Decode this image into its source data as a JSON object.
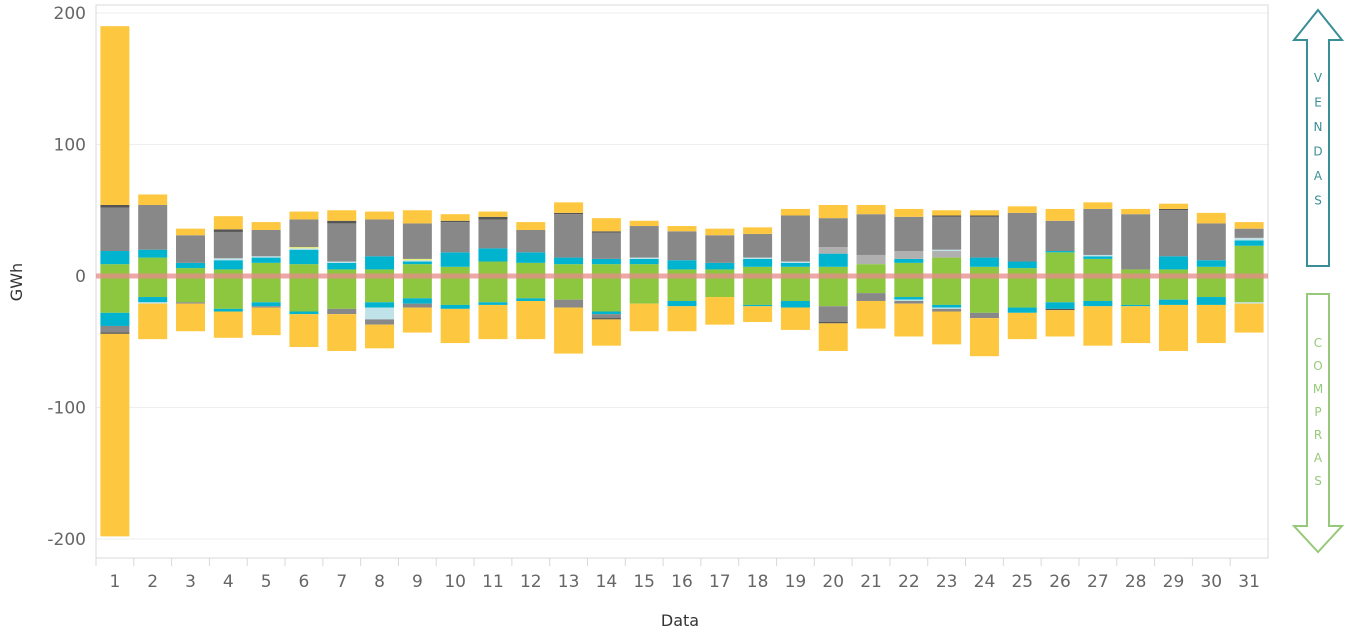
{
  "chart_data": {
    "type": "bar",
    "stacked": "diverging",
    "xlabel": "Data",
    "ylabel": "GWh",
    "ylim": [
      -210,
      210
    ],
    "yticks": [
      200,
      100,
      0,
      -100,
      -200
    ],
    "categories": [
      "1",
      "2",
      "3",
      "4",
      "5",
      "6",
      "7",
      "8",
      "9",
      "10",
      "11",
      "12",
      "13",
      "14",
      "15",
      "16",
      "17",
      "18",
      "19",
      "20",
      "21",
      "22",
      "23",
      "24",
      "25",
      "26",
      "27",
      "28",
      "29",
      "30",
      "31"
    ],
    "zero_line_color": "#e88a8a",
    "series": [
      {
        "color": "#8dc63f",
        "values": [
          9,
          14,
          6,
          5,
          10,
          9,
          5,
          5,
          9,
          7,
          11,
          10,
          9,
          9,
          9,
          5,
          5,
          7,
          7,
          7,
          9,
          10,
          14,
          7,
          6,
          18,
          13,
          5,
          5,
          7,
          23
        ]
      },
      {
        "color": "#00b4d0",
        "values": [
          10,
          6,
          4,
          7,
          4,
          11,
          5,
          10,
          2,
          11,
          10,
          8,
          5,
          4,
          4,
          7,
          5,
          6,
          3,
          10,
          0,
          3,
          0,
          7,
          5,
          1,
          2,
          0,
          10,
          5,
          4
        ]
      },
      {
        "color": "#b0b0b0",
        "values": [
          0,
          0,
          0,
          0,
          0,
          0,
          0,
          0,
          0,
          0,
          0,
          0,
          0,
          0,
          0,
          0,
          0,
          0,
          0,
          5,
          7,
          6,
          5,
          0,
          0,
          0,
          0,
          0,
          0,
          0,
          0
        ]
      },
      {
        "color": "#bfe3e8",
        "values": [
          0,
          0,
          0,
          1.5,
          1,
          1,
          1,
          0,
          1,
          0,
          0,
          0,
          0,
          0,
          1,
          0,
          0,
          1,
          1,
          0,
          0,
          0,
          1,
          0,
          0,
          0,
          1,
          0,
          0,
          0,
          2
        ]
      },
      {
        "color": "#e6f075",
        "values": [
          0,
          0,
          0,
          0,
          0,
          1,
          0,
          0,
          1,
          0,
          0,
          0,
          0,
          0,
          0,
          0,
          0,
          0,
          0,
          0,
          0,
          0,
          0,
          0,
          0,
          0,
          0,
          0,
          0,
          0,
          0
        ]
      },
      {
        "color": "#888888",
        "values": [
          33,
          34,
          21,
          20,
          20,
          21,
          29,
          28,
          27,
          23,
          22,
          17,
          33,
          20,
          24,
          22,
          21,
          18,
          35,
          22,
          31,
          26,
          25,
          31,
          37,
          23,
          35,
          42,
          35,
          28,
          7
        ]
      },
      {
        "color": "#555555",
        "values": [
          2,
          0,
          0,
          2,
          0,
          0,
          2,
          0,
          0,
          1,
          2,
          0,
          1,
          1,
          0,
          0,
          0,
          0,
          0,
          0,
          0,
          0,
          1,
          1,
          0,
          0,
          0,
          0,
          1,
          0,
          0
        ]
      },
      {
        "color": "#fdc840",
        "values": [
          136,
          8,
          5,
          10,
          6,
          6,
          8,
          6,
          10,
          5,
          4,
          6,
          8,
          10,
          4,
          4,
          5,
          5,
          5,
          10,
          7,
          6,
          4,
          4,
          5,
          9,
          5,
          4,
          4,
          8,
          5
        ]
      },
      {
        "color": "#8dc63f",
        "values": [
          -28,
          -16,
          -20,
          -25,
          -20,
          -27,
          -25,
          -20,
          -17,
          -22,
          -20,
          -17,
          -18,
          -27,
          -21,
          -19,
          -16,
          -22,
          -19,
          -23,
          -13,
          -16,
          -22,
          -28,
          -24,
          -20,
          -19,
          -22,
          -18,
          -16,
          -20
        ]
      },
      {
        "color": "#00b4d0",
        "values": [
          -10,
          -4,
          0,
          -2,
          -3,
          -2,
          0,
          -4,
          -4,
          -3,
          -2,
          -2,
          0,
          -2,
          0,
          -4,
          0,
          -1,
          -5,
          0,
          0,
          -2,
          -2,
          0,
          -4,
          -5,
          -4,
          -1,
          -4,
          -6,
          0
        ]
      },
      {
        "color": "#bfe3e8",
        "values": [
          0,
          -1,
          0,
          0,
          0,
          0,
          0,
          -9,
          0,
          0,
          0,
          0,
          0,
          0,
          0,
          0,
          0,
          0,
          0,
          0,
          0,
          -1,
          -1,
          0,
          0,
          0,
          0,
          0,
          0,
          0,
          -1
        ]
      },
      {
        "color": "#b0b0b0",
        "values": [
          0,
          0,
          0,
          0,
          0,
          0,
          0,
          0,
          0,
          0,
          0,
          0,
          0,
          0,
          0,
          0,
          0,
          0,
          0,
          0,
          0,
          0,
          0,
          0,
          0,
          0,
          0,
          0,
          0,
          0,
          0
        ]
      },
      {
        "color": "#888888",
        "values": [
          -5,
          0,
          -1,
          0,
          -1,
          0,
          -4,
          -4,
          -3,
          0,
          0,
          0,
          -6,
          -3,
          0,
          0,
          0,
          0,
          0,
          -12,
          -6,
          -2,
          -2,
          -4,
          0,
          0,
          0,
          0,
          0,
          0,
          0
        ]
      },
      {
        "color": "#555555",
        "values": [
          -1,
          0,
          0,
          0,
          0,
          0,
          0,
          0,
          0,
          0,
          0,
          0,
          0,
          -1,
          0,
          0,
          0,
          0,
          0,
          -1,
          0,
          0,
          0,
          0,
          0,
          -1,
          0,
          0,
          0,
          0,
          0
        ]
      },
      {
        "color": "#fdc840",
        "values": [
          -154,
          -27,
          -21,
          -20,
          -21,
          -25,
          -28,
          -18,
          -19,
          -26,
          -26,
          -29,
          -35,
          -20,
          -21,
          -19,
          -21,
          -12,
          -17,
          -21,
          -21,
          -25,
          -25,
          -29,
          -20,
          -20,
          -30,
          -28,
          -35,
          -29,
          -22
        ]
      }
    ]
  },
  "arrows": {
    "sell": {
      "letters": [
        "V",
        "E",
        "N",
        "D",
        "A",
        "S"
      ],
      "color": "#3a8f97",
      "text_color": "#3a8f97"
    },
    "buy": {
      "letters": [
        "C",
        "O",
        "M",
        "P",
        "R",
        "A",
        "S"
      ],
      "color": "#97c97a",
      "text_color": "#97c97a"
    }
  }
}
